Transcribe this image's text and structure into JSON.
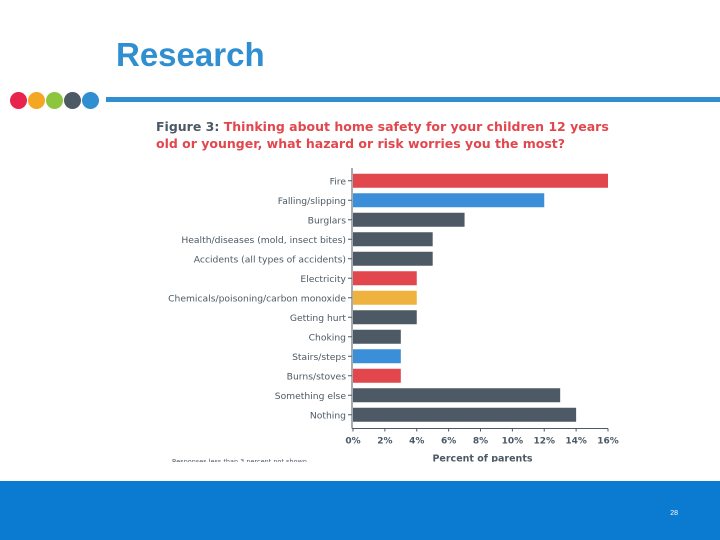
{
  "slide": {
    "title": "Research",
    "page_number": "28",
    "accent": "#2f8fd1",
    "footer_color": "#0b7ad1",
    "dot_colors": [
      "#e8234c",
      "#f5a623",
      "#8cc63f",
      "#4d5964",
      "#2f8fd1"
    ]
  },
  "figure": {
    "label": "Figure 3:",
    "question": "Thinking about home safety for your children 12 years old or younger, what hazard or risk worries you the most?",
    "note": "Responses less than 3 percent not shown."
  },
  "chart_data": {
    "type": "bar",
    "orientation": "horizontal",
    "xlabel": "Percent of parents",
    "xlim": [
      0,
      16
    ],
    "xticks": [
      "0%",
      "2%",
      "4%",
      "6%",
      "8%",
      "10%",
      "12%",
      "14%",
      "16%"
    ],
    "grid": false,
    "categories": [
      "Fire",
      "Falling/slipping",
      "Burglars",
      "Health/diseases (mold, insect bites)",
      "Accidents (all types of accidents)",
      "Electricity",
      "Chemicals/poisoning/carbon monoxide",
      "Getting hurt",
      "Choking",
      "Stairs/steps",
      "Burns/stoves",
      "Something else",
      "Nothing"
    ],
    "values": [
      16,
      12,
      7,
      5,
      5,
      4,
      4,
      4,
      3,
      3,
      3,
      13,
      14
    ],
    "bar_colors": [
      "#e1474d",
      "#3a8fd8",
      "#4d5964",
      "#4d5964",
      "#4d5964",
      "#e1474d",
      "#f0b23e",
      "#4d5964",
      "#4d5964",
      "#3a8fd8",
      "#e1474d",
      "#4d5964",
      "#4d5964"
    ]
  }
}
